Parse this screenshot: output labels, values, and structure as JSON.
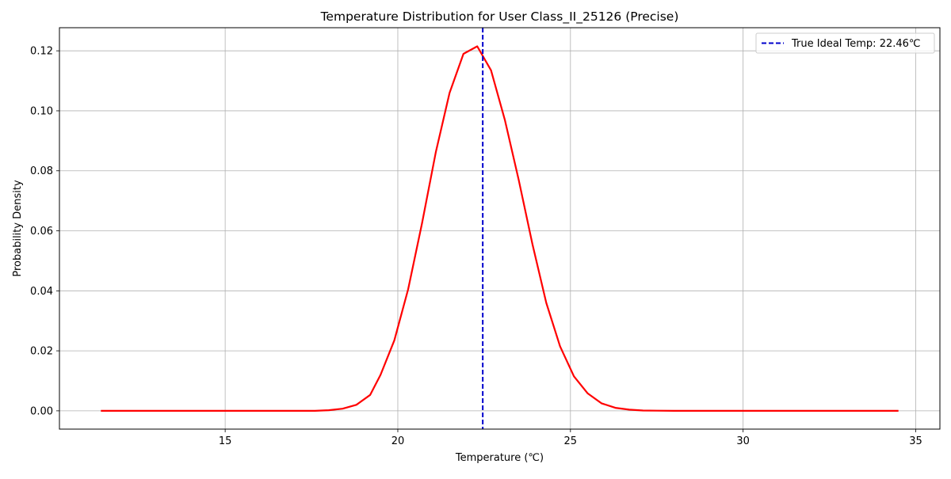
{
  "chart_data": {
    "type": "line",
    "title": "Temperature Distribution for User Class_II_25126 (Precise)",
    "xlabel": "Temperature (℃)",
    "ylabel": "Probability Density",
    "xlim": [
      10.2,
      35.7
    ],
    "ylim": [
      -0.0061,
      0.1277
    ],
    "x_ticks": [
      15,
      20,
      25,
      30,
      35
    ],
    "y_ticks": [
      0.0,
      0.02,
      0.04,
      0.06,
      0.08,
      0.1,
      0.12
    ],
    "x_tick_labels": [
      "15",
      "20",
      "25",
      "30",
      "35"
    ],
    "y_tick_labels": [
      "0.00",
      "0.02",
      "0.04",
      "0.06",
      "0.08",
      "0.10",
      "0.12"
    ],
    "grid": true,
    "legend_position": "top-right",
    "series": [
      {
        "type": "line",
        "color": "#ff0000",
        "x": [
          11.4,
          17.6,
          18.0,
          18.4,
          18.8,
          19.2,
          19.5,
          19.9,
          20.3,
          20.7,
          21.1,
          21.5,
          21.9,
          22.3,
          22.7,
          23.1,
          23.5,
          23.9,
          24.3,
          24.7,
          25.1,
          25.5,
          25.9,
          26.3,
          26.7,
          27.1,
          27.5,
          28.0,
          34.5
        ],
        "y": [
          0.0,
          0.0,
          0.0002,
          0.0007,
          0.002,
          0.0053,
          0.012,
          0.0235,
          0.0405,
          0.0625,
          0.0862,
          0.106,
          0.119,
          0.1215,
          0.1135,
          0.097,
          0.077,
          0.0555,
          0.036,
          0.0215,
          0.0115,
          0.0058,
          0.0025,
          0.001,
          0.0004,
          0.0001,
          5e-05,
          0.0,
          0.0
        ]
      },
      {
        "name": "True Ideal Temp: 22.46℃",
        "type": "vline",
        "x_value": 22.46,
        "color": "#0000cc",
        "style": "dashed"
      }
    ]
  }
}
